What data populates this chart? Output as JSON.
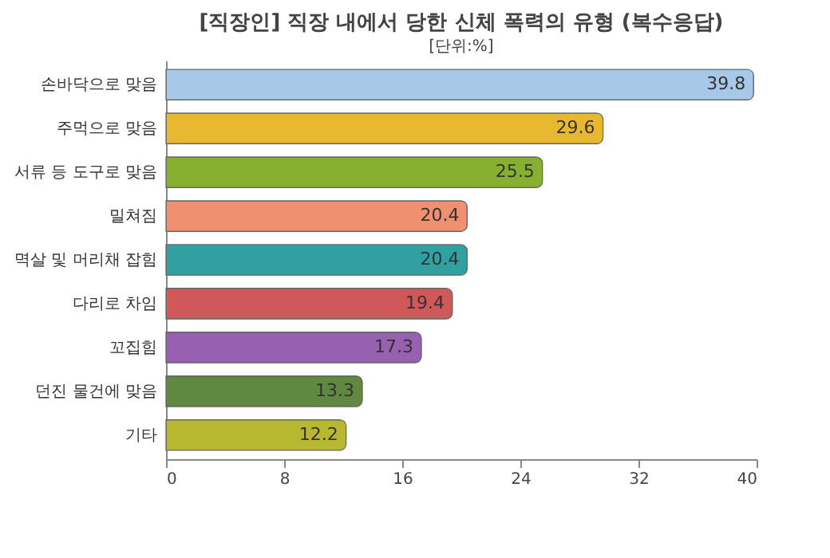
{
  "chart_data": {
    "type": "bar",
    "orientation": "horizontal",
    "title": "[직장인] 직장 내에서 당한 신체 폭력의 유형 (복수응답)",
    "subtitle": "[단위:%]",
    "categories": [
      "손바닥으로 맞음",
      "주먹으로 맞음",
      "서류 등 도구로 맞음",
      "밀쳐짐",
      "멱살 및 머리채 잡힘",
      "다리로 차임",
      "꼬집힘",
      "던진 물건에 맞음",
      "기타"
    ],
    "values": [
      39.8,
      29.6,
      25.5,
      20.4,
      20.4,
      19.4,
      17.3,
      13.3,
      12.2
    ],
    "colors": [
      "#a8c8e8",
      "#e8b830",
      "#88b030",
      "#f09070",
      "#30a0a0",
      "#d05858",
      "#9860b0",
      "#608840",
      "#b8b830"
    ],
    "xlim": [
      0,
      40
    ],
    "xticks": [
      0,
      8,
      16,
      24,
      32,
      40
    ],
    "data_labels": true,
    "legend": false
  }
}
